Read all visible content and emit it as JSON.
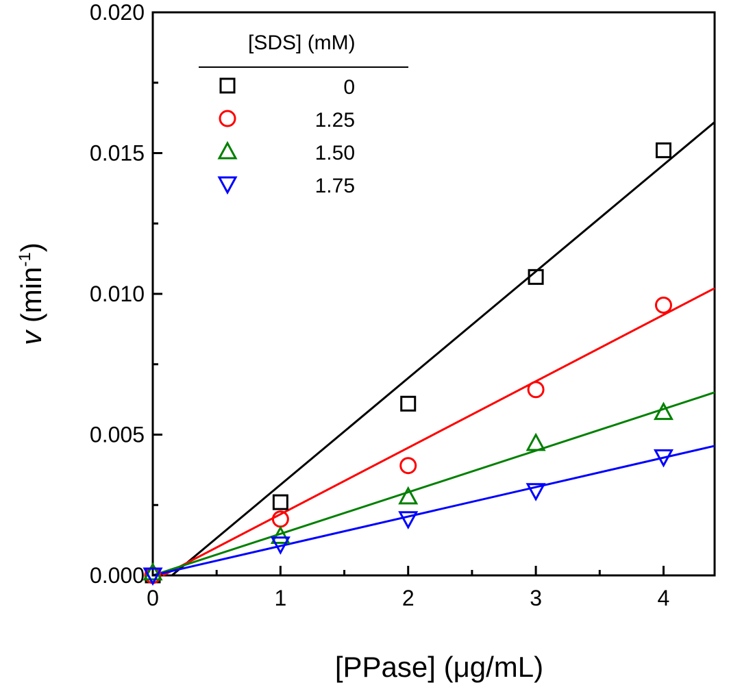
{
  "chart_data": {
    "type": "scatter",
    "title": "",
    "xlabel": "[PPase] (μg/mL)",
    "ylabel_symbol": "v",
    "ylabel_unit_open": " (min",
    "ylabel_unit_exp": "-1",
    "ylabel_unit_close": ")",
    "xlim": [
      0,
      4.4
    ],
    "ylim": [
      0,
      0.02
    ],
    "xticks": [
      0,
      1,
      2,
      3,
      4
    ],
    "xtick_labels": [
      "0",
      "1",
      "2",
      "3",
      "4"
    ],
    "yticks": [
      0,
      0.005,
      0.01,
      0.015,
      0.02
    ],
    "ytick_labels": [
      "0.000",
      "0.005",
      "0.010",
      "0.015",
      "0.020"
    ],
    "grid": false,
    "legend": {
      "title": "[SDS] (mM)",
      "position": "top-left"
    },
    "series": [
      {
        "name": "0",
        "marker": "square",
        "color": "#000000",
        "x": [
          0,
          1,
          2,
          3,
          4
        ],
        "y": [
          0.0,
          0.0026,
          0.0061,
          0.0106,
          0.0151
        ],
        "fit": {
          "x": [
            0.15,
            4.4
          ],
          "y": [
            0.0,
            0.0161
          ]
        }
      },
      {
        "name": "1.25",
        "marker": "circle",
        "color": "#ff0000",
        "x": [
          0,
          1,
          2,
          3,
          4
        ],
        "y": [
          0.0,
          0.002,
          0.0039,
          0.0066,
          0.0096
        ],
        "fit": {
          "x": [
            0.08,
            4.4
          ],
          "y": [
            0.0,
            0.0102
          ]
        }
      },
      {
        "name": "1.50",
        "marker": "triangle-up",
        "color": "#008000",
        "x": [
          0,
          1,
          2,
          3,
          4
        ],
        "y": [
          0.0001,
          0.0014,
          0.0028,
          0.0047,
          0.0058
        ],
        "fit": {
          "x": [
            0.0,
            4.4
          ],
          "y": [
            0.0,
            0.0065
          ]
        }
      },
      {
        "name": "1.75",
        "marker": "triangle-down",
        "color": "#0000ff",
        "x": [
          0,
          1,
          2,
          3,
          4
        ],
        "y": [
          0.0,
          0.0011,
          0.002,
          0.003,
          0.0042
        ],
        "fit": {
          "x": [
            0.0,
            4.4
          ],
          "y": [
            0.0,
            0.0046
          ]
        }
      }
    ]
  }
}
